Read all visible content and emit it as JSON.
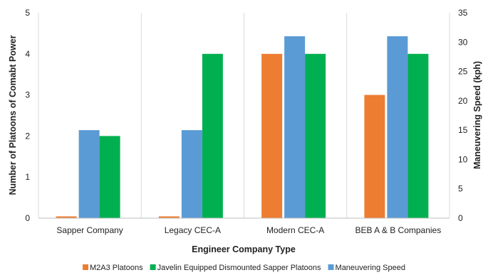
{
  "chart_data": {
    "type": "bar",
    "categories": [
      "Sapper Company",
      "Legacy CEC-A",
      "Modern CEC-A",
      "BEB A & B Companies"
    ],
    "series": [
      {
        "name": "M2A3 Platoons",
        "axis": "left",
        "color": "#ED7D31",
        "values": [
          0,
          0,
          4,
          3
        ]
      },
      {
        "name": "Maneuvering Speed",
        "axis": "right",
        "color": "#5B9BD5",
        "values": [
          15,
          15,
          31,
          31
        ]
      },
      {
        "name": "Javelin Equipped Dismounted Sapper Platoons",
        "axis": "left",
        "color": "#00B050",
        "values": [
          2,
          4,
          4,
          4
        ]
      }
    ],
    "xlabel": "Engineer Company Type",
    "ylabel": "Number of Platoons of Comabt Power",
    "y2label": "Maneuvering Speed (kph)",
    "ylim": [
      0,
      5
    ],
    "y2lim": [
      0,
      35
    ],
    "yticks": [
      "0",
      "1",
      "2",
      "3",
      "4",
      "5"
    ],
    "y2ticks": [
      "0",
      "5",
      "10",
      "15",
      "20",
      "25",
      "30",
      "35"
    ],
    "grid": "vertical category separators",
    "legend_position": "bottom",
    "legend_order": [
      "M2A3 Platoons",
      "Javelin Equipped Dismounted Sapper Platoons",
      "Maneuvering Speed"
    ]
  }
}
